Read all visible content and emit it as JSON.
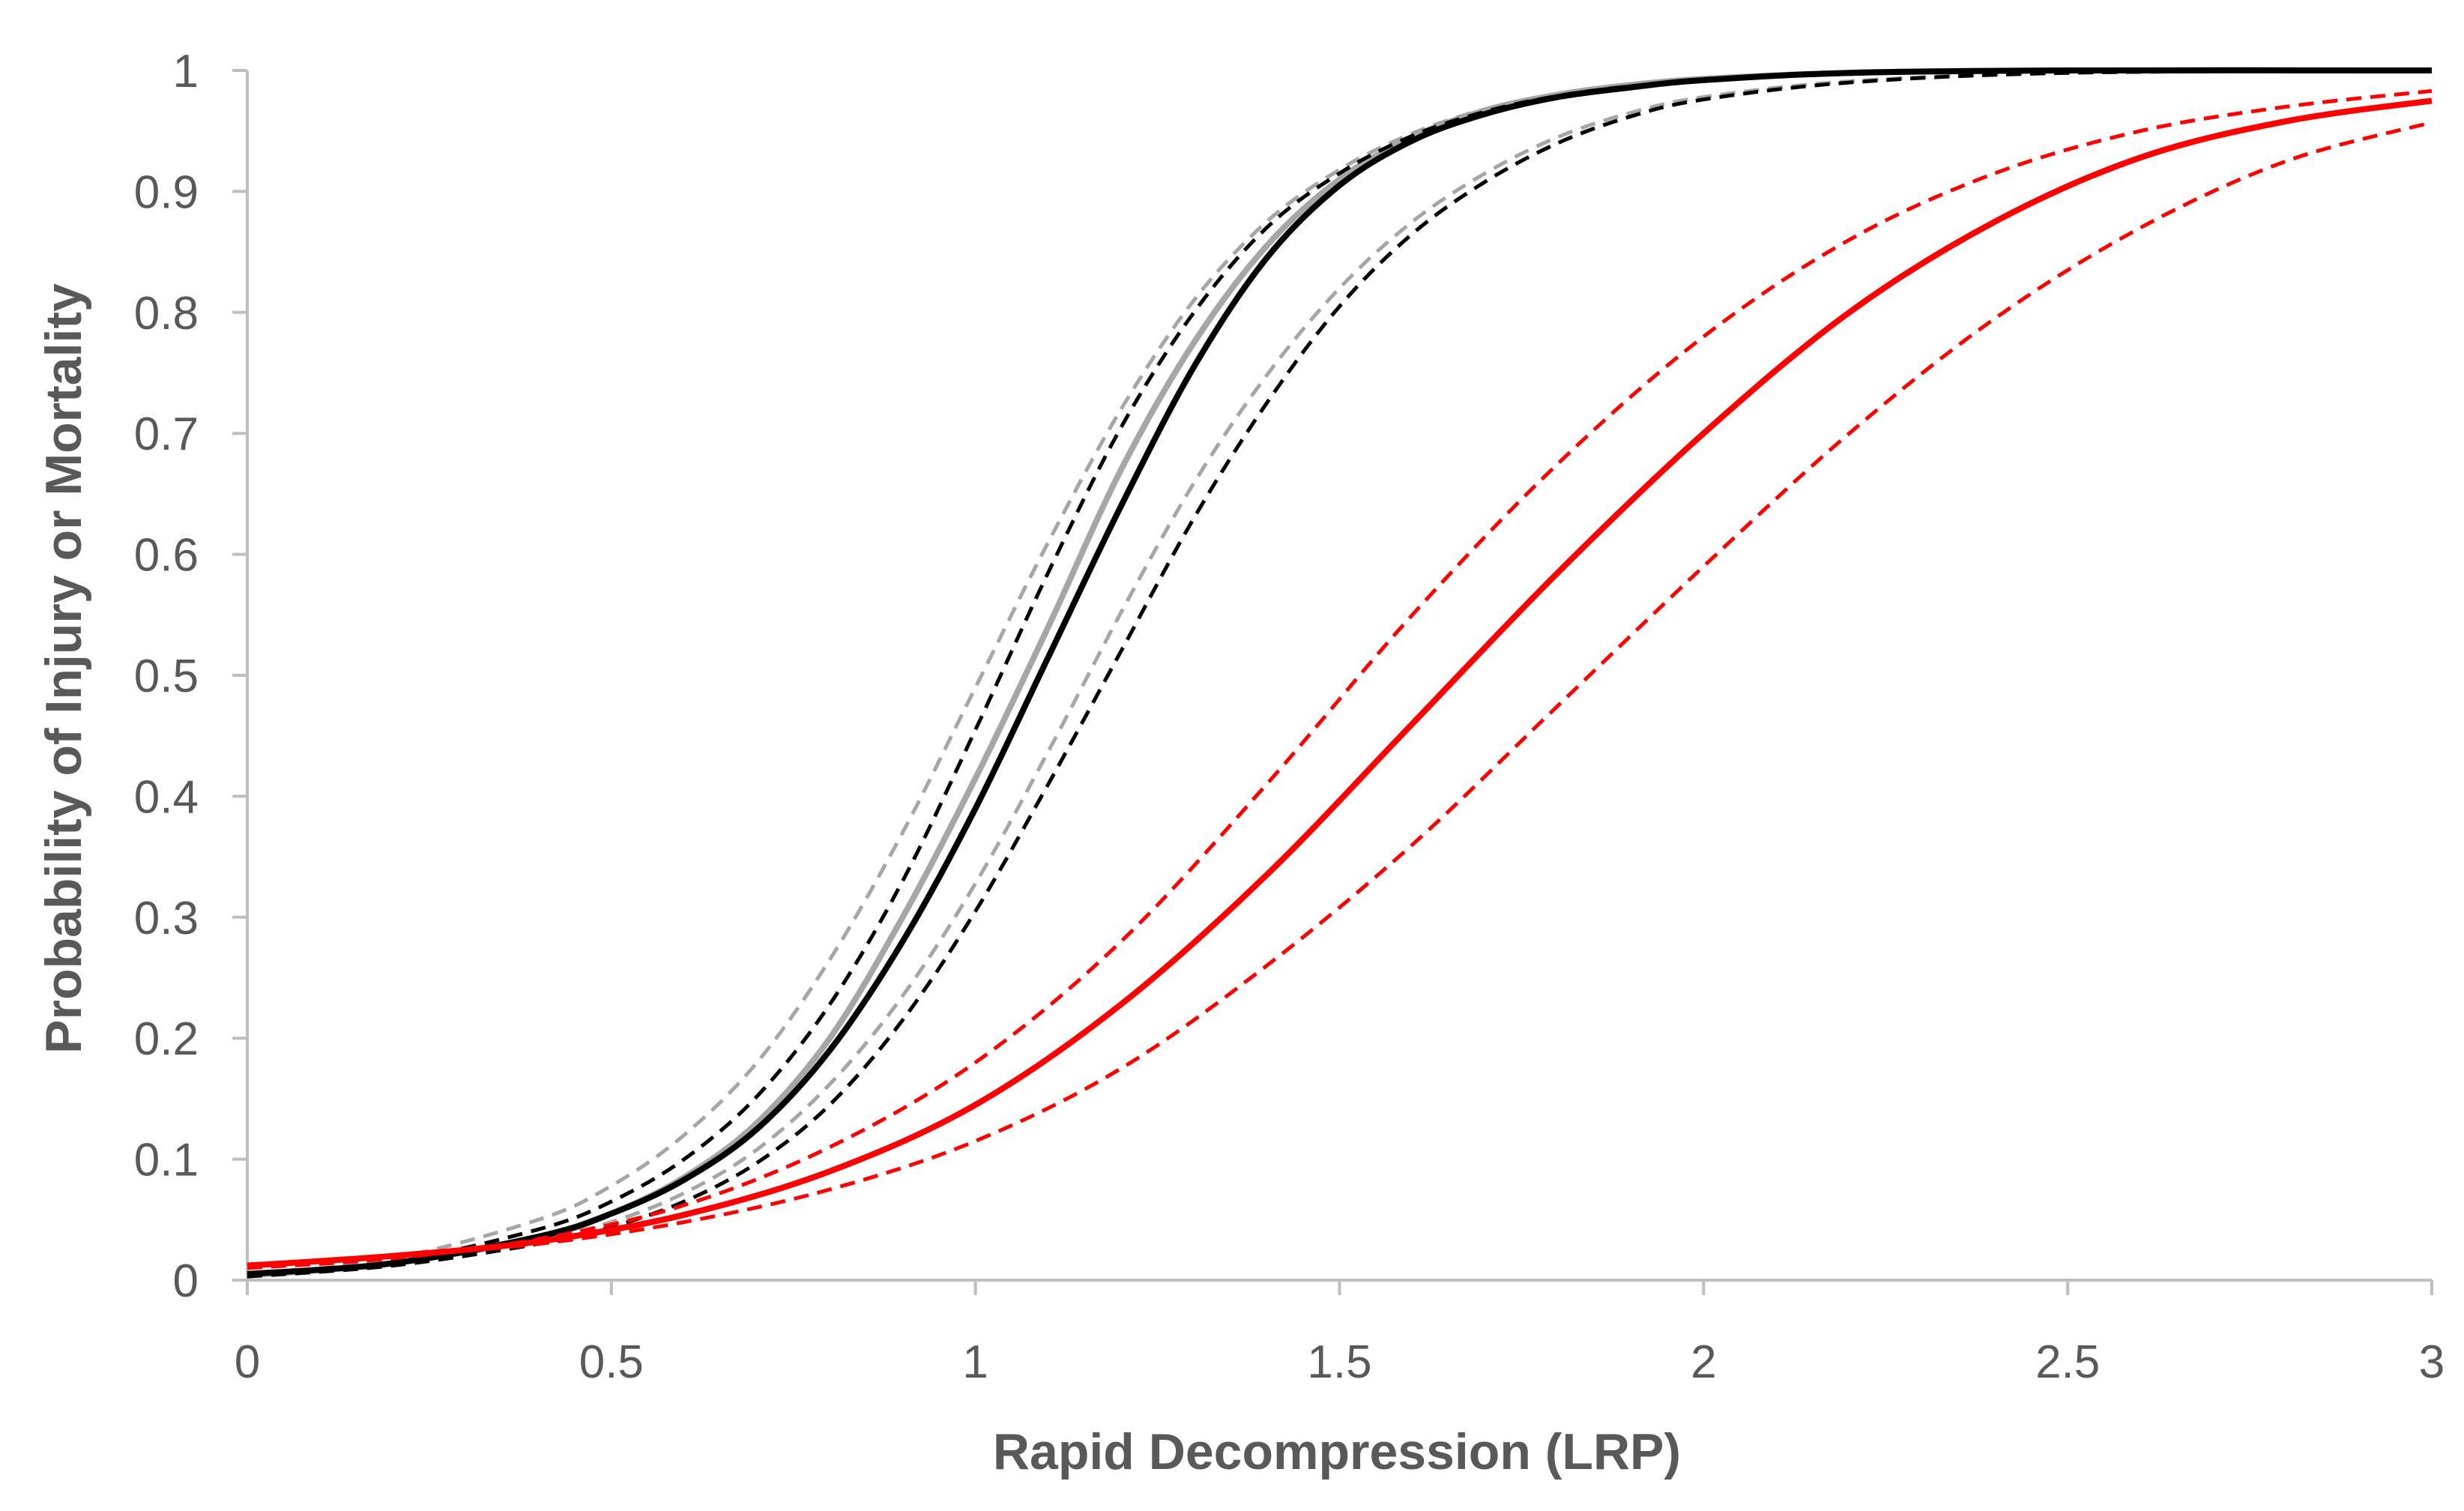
{
  "chart_data": {
    "type": "line",
    "title": "",
    "xlabel": "Rapid Decompression (LRP)",
    "ylabel": "Probability of Injury or Mortality",
    "xlim": [
      0,
      3
    ],
    "ylim": [
      0,
      1
    ],
    "x_ticks": [
      "0",
      "0.5",
      "1",
      "1.5",
      "2",
      "2.5",
      "3"
    ],
    "y_ticks": [
      "0",
      "0.1",
      "0.2",
      "0.3",
      "0.4",
      "0.5",
      "0.6",
      "0.7",
      "0.8",
      "0.9",
      "1"
    ],
    "grid": false,
    "legend": "none",
    "series": [
      {
        "name": "gray-lower-bound",
        "color": "#a6a6a6",
        "dash": "dashed",
        "x": [
          0,
          0.2,
          0.4,
          0.5,
          0.6,
          0.7,
          0.8,
          0.9,
          1.0,
          1.1,
          1.2,
          1.3,
          1.4,
          1.5,
          1.6,
          1.7,
          1.8,
          1.9,
          2.0,
          2.2,
          2.5,
          3.0
        ],
        "y": [
          0.004,
          0.014,
          0.033,
          0.048,
          0.072,
          0.108,
          0.162,
          0.235,
          0.328,
          0.437,
          0.552,
          0.659,
          0.748,
          0.82,
          0.875,
          0.915,
          0.945,
          0.965,
          0.978,
          0.991,
          0.998,
          1.0
        ]
      },
      {
        "name": "gray-fit",
        "color": "#a6a6a6",
        "dash": "solid",
        "x": [
          0,
          0.2,
          0.4,
          0.5,
          0.6,
          0.7,
          0.8,
          0.9,
          1.0,
          1.1,
          1.2,
          1.3,
          1.4,
          1.5,
          1.6,
          1.7,
          1.8,
          1.9,
          2.0,
          2.2,
          2.5,
          3.0
        ],
        "y": [
          0.004,
          0.014,
          0.035,
          0.055,
          0.085,
          0.13,
          0.2,
          0.3,
          0.415,
          0.54,
          0.67,
          0.775,
          0.855,
          0.91,
          0.945,
          0.967,
          0.98,
          0.988,
          0.993,
          0.998,
          1.0,
          1.0
        ]
      },
      {
        "name": "gray-upper-bound",
        "color": "#a6a6a6",
        "dash": "dashed",
        "x": [
          0,
          0.2,
          0.4,
          0.5,
          0.6,
          0.7,
          0.8,
          0.9,
          1.0,
          1.1,
          1.2,
          1.3,
          1.4,
          1.5,
          1.6,
          1.7,
          1.8,
          1.9,
          2.0,
          2.2,
          2.5,
          3.0
        ],
        "y": [
          0.004,
          0.018,
          0.05,
          0.078,
          0.12,
          0.18,
          0.265,
          0.37,
          0.49,
          0.61,
          0.72,
          0.81,
          0.875,
          0.918,
          0.948,
          0.968,
          0.98,
          0.988,
          0.993,
          0.998,
          1.0,
          1.0
        ]
      },
      {
        "name": "black-lower-bound",
        "color": "#000000",
        "dash": "dashed",
        "x": [
          0,
          0.2,
          0.4,
          0.5,
          0.6,
          0.7,
          0.8,
          0.9,
          1.0,
          1.1,
          1.2,
          1.3,
          1.4,
          1.5,
          1.6,
          1.7,
          1.8,
          1.9,
          2.0,
          2.2,
          2.5,
          3.0
        ],
        "y": [
          0.003,
          0.012,
          0.03,
          0.044,
          0.065,
          0.097,
          0.145,
          0.215,
          0.305,
          0.41,
          0.52,
          0.63,
          0.725,
          0.805,
          0.865,
          0.908,
          0.94,
          0.962,
          0.976,
          0.99,
          0.998,
          1.0
        ]
      },
      {
        "name": "black-fit",
        "color": "#000000",
        "dash": "solid",
        "x": [
          0,
          0.2,
          0.4,
          0.5,
          0.6,
          0.7,
          0.8,
          0.9,
          1.0,
          1.1,
          1.2,
          1.3,
          1.4,
          1.5,
          1.6,
          1.7,
          1.8,
          1.9,
          2.0,
          2.2,
          2.5,
          3.0
        ],
        "y": [
          0.005,
          0.014,
          0.036,
          0.055,
          0.083,
          0.125,
          0.19,
          0.28,
          0.39,
          0.515,
          0.64,
          0.755,
          0.845,
          0.905,
          0.942,
          0.964,
          0.978,
          0.986,
          0.992,
          0.998,
          1.0,
          1.0
        ]
      },
      {
        "name": "black-upper-bound",
        "color": "#000000",
        "dash": "dashed",
        "x": [
          0,
          0.2,
          0.4,
          0.5,
          0.6,
          0.7,
          0.8,
          0.9,
          1.0,
          1.1,
          1.2,
          1.3,
          1.4,
          1.5,
          1.6,
          1.7,
          1.8,
          1.9,
          2.0,
          2.2,
          2.5,
          3.0
        ],
        "y": [
          0.004,
          0.015,
          0.042,
          0.065,
          0.1,
          0.152,
          0.228,
          0.33,
          0.455,
          0.585,
          0.705,
          0.8,
          0.87,
          0.915,
          0.946,
          0.966,
          0.979,
          0.987,
          0.992,
          0.997,
          1.0,
          1.0
        ]
      },
      {
        "name": "red-lower-bound",
        "color": "#ff0000",
        "dash": "dashed",
        "x": [
          0,
          0.2,
          0.4,
          0.6,
          0.8,
          1.0,
          1.2,
          1.4,
          1.6,
          1.8,
          2.0,
          2.2,
          2.4,
          2.6,
          2.8,
          3.0
        ],
        "y": [
          0.013,
          0.02,
          0.03,
          0.048,
          0.075,
          0.115,
          0.175,
          0.26,
          0.36,
          0.475,
          0.59,
          0.7,
          0.795,
          0.87,
          0.925,
          0.957
        ]
      },
      {
        "name": "red-fit",
        "color": "#ff0000",
        "dash": "solid",
        "x": [
          0,
          0.2,
          0.4,
          0.6,
          0.8,
          1.0,
          1.2,
          1.4,
          1.6,
          1.8,
          2.0,
          2.2,
          2.4,
          2.6,
          2.8,
          3.0
        ],
        "y": [
          0.012,
          0.02,
          0.032,
          0.054,
          0.09,
          0.145,
          0.228,
          0.335,
          0.46,
          0.585,
          0.7,
          0.8,
          0.875,
          0.928,
          0.958,
          0.975
        ]
      },
      {
        "name": "red-upper-bound",
        "color": "#ff0000",
        "dash": "dashed",
        "x": [
          0,
          0.2,
          0.4,
          0.6,
          0.8,
          1.0,
          1.2,
          1.4,
          1.6,
          1.8,
          2.0,
          2.2,
          2.4,
          2.6,
          2.8,
          3.0
        ],
        "y": [
          0.01,
          0.018,
          0.034,
          0.062,
          0.11,
          0.18,
          0.28,
          0.41,
          0.55,
          0.675,
          0.78,
          0.86,
          0.915,
          0.95,
          0.97,
          0.983
        ]
      }
    ]
  }
}
